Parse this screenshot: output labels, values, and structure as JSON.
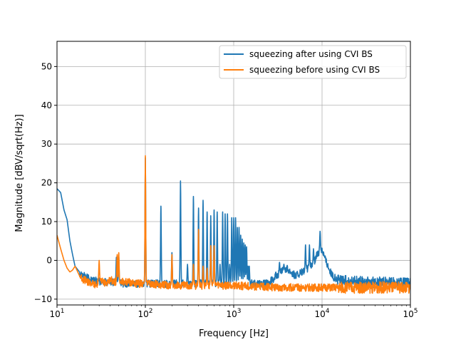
{
  "chart_data": {
    "type": "line",
    "title": "",
    "xlabel": "Frequency [Hz]",
    "ylabel": "Magnitude [dBV/sqrt(Hz)]",
    "xscale": "log",
    "xlim": [
      10,
      100000
    ],
    "ylim": [
      -11.5,
      56.5
    ],
    "grid": true,
    "legend_position": "top-right",
    "x_ticks": [
      {
        "base": "10",
        "exp": "1",
        "value": 10
      },
      {
        "base": "10",
        "exp": "2",
        "value": 100
      },
      {
        "base": "10",
        "exp": "3",
        "value": 1000
      },
      {
        "base": "10",
        "exp": "4",
        "value": 10000
      },
      {
        "base": "10",
        "exp": "5",
        "value": 100000
      }
    ],
    "y_ticks": [
      "−10",
      "0",
      "10",
      "20",
      "30",
      "40",
      "50"
    ],
    "y_tick_values": [
      -10,
      0,
      10,
      20,
      30,
      40,
      50
    ],
    "series": [
      {
        "name": "squeezing after using CVI BS",
        "color": "#1f77b4",
        "noise_floor": -5.5,
        "baseline": [
          [
            10,
            18.5
          ],
          [
            11,
            17.5
          ],
          [
            12,
            13
          ],
          [
            13,
            10.5
          ],
          [
            14,
            5
          ],
          [
            15,
            1.5
          ],
          [
            16,
            -1.5
          ],
          [
            18,
            -3
          ],
          [
            20,
            -4
          ],
          [
            25,
            -5
          ],
          [
            30,
            -5.5
          ],
          [
            40,
            -5.5
          ],
          [
            60,
            -6
          ],
          [
            1000,
            -6
          ],
          [
            2000,
            -6
          ],
          [
            2500,
            -6
          ],
          [
            3000,
            -4
          ],
          [
            4000,
            -2
          ],
          [
            5000,
            -4
          ],
          [
            6000,
            -3
          ],
          [
            7000,
            -2
          ],
          [
            8000,
            -1
          ],
          [
            9000,
            2
          ],
          [
            10000,
            3
          ],
          [
            11000,
            0
          ],
          [
            13000,
            -4
          ],
          [
            15000,
            -5
          ],
          [
            20000,
            -5.5
          ],
          [
            100000,
            -6
          ]
        ],
        "peaks": [
          [
            47,
            0.8
          ],
          [
            50,
            1
          ],
          [
            100,
            26.5
          ],
          [
            150,
            14
          ],
          [
            200,
            2
          ],
          [
            250,
            20.5
          ],
          [
            300,
            -1
          ],
          [
            350,
            16.5
          ],
          [
            400,
            13.5
          ],
          [
            450,
            15.5
          ],
          [
            500,
            12.5
          ],
          [
            550,
            11.5
          ],
          [
            600,
            13
          ],
          [
            650,
            12.5
          ],
          [
            700,
            -1
          ],
          [
            750,
            12.5
          ],
          [
            800,
            12
          ],
          [
            850,
            12
          ],
          [
            900,
            -1
          ],
          [
            950,
            11
          ],
          [
            1000,
            11
          ],
          [
            1050,
            11
          ],
          [
            1100,
            8.5
          ],
          [
            1150,
            8.5
          ],
          [
            1200,
            6.5
          ],
          [
            1250,
            5.5
          ],
          [
            1300,
            4.5
          ],
          [
            1350,
            4
          ],
          [
            1400,
            3.5
          ],
          [
            1450,
            -1.5
          ],
          [
            1500,
            -1.5
          ],
          [
            3300,
            -0.5
          ],
          [
            3700,
            -1
          ],
          [
            6500,
            4
          ],
          [
            7200,
            4
          ],
          [
            8000,
            3
          ],
          [
            9500,
            7.5
          ]
        ]
      },
      {
        "name": "squeezing before using CVI BS",
        "color": "#ff7f0e",
        "noise_floor": -6,
        "baseline": [
          [
            10,
            6.5
          ],
          [
            11,
            3
          ],
          [
            12,
            0
          ],
          [
            13,
            -2
          ],
          [
            14,
            -3
          ],
          [
            15,
            -2.5
          ],
          [
            16,
            -1.5
          ],
          [
            18,
            -4
          ],
          [
            20,
            -5
          ],
          [
            25,
            -6
          ],
          [
            28,
            -6.5
          ],
          [
            30,
            -5
          ],
          [
            35,
            -6
          ],
          [
            40,
            -5
          ],
          [
            45,
            -5.5
          ],
          [
            60,
            -5.5
          ],
          [
            80,
            -6
          ],
          [
            100,
            -6
          ],
          [
            200,
            -6.5
          ],
          [
            1000,
            -6.5
          ],
          [
            3000,
            -7
          ],
          [
            100000,
            -7
          ]
        ],
        "peaks": [
          [
            30,
            0
          ],
          [
            48,
            1.5
          ],
          [
            50,
            2
          ],
          [
            100,
            27
          ],
          [
            200,
            1.5
          ],
          [
            350,
            -1
          ],
          [
            400,
            8
          ],
          [
            450,
            -1.5
          ],
          [
            500,
            -2
          ],
          [
            550,
            3.8
          ],
          [
            600,
            3.8
          ]
        ]
      }
    ]
  }
}
